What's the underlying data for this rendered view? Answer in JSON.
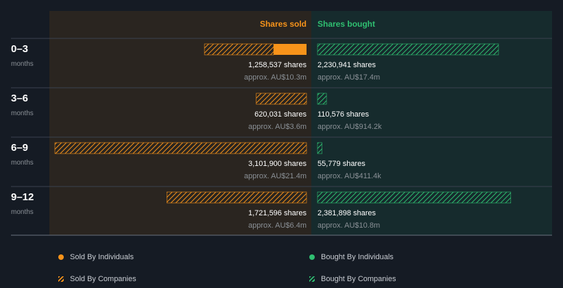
{
  "header": {
    "sold_label": "Shares sold",
    "bought_label": "Shares bought"
  },
  "colors": {
    "background": "#151b24",
    "sold_panel": "#2a2520",
    "bought_panel": "#162b2d",
    "sold_accent": "#f7931a",
    "bought_accent": "#2fbf71",
    "label_text": "#ffffff",
    "muted_text": "#8a9096"
  },
  "chart_data": {
    "type": "bar",
    "title": "",
    "unit": "shares",
    "categories": [
      {
        "label": "0–3",
        "sublabel": "months"
      },
      {
        "label": "3–6",
        "sublabel": "months"
      },
      {
        "label": "6–9",
        "sublabel": "months"
      },
      {
        "label": "9–12",
        "sublabel": "months"
      }
    ],
    "series": [
      {
        "name": "Sold By Individuals",
        "side": "sold",
        "values": [
          405000,
          0,
          0,
          0
        ]
      },
      {
        "name": "Sold By Companies",
        "side": "sold",
        "values": [
          853537,
          620031,
          3101900,
          1721596
        ]
      },
      {
        "name": "Bought By Individuals",
        "side": "bought",
        "values": [
          0,
          0,
          0,
          0
        ]
      },
      {
        "name": "Bought By Companies",
        "side": "bought",
        "values": [
          2230941,
          110576,
          55779,
          2381898
        ]
      }
    ],
    "sold_totals": [
      "1,258,537 shares",
      "620,031 shares",
      "3,101,900 shares",
      "1,721,596 shares"
    ],
    "sold_values": [
      "approx. AU$10.3m",
      "approx. AU$3.6m",
      "approx. AU$21.4m",
      "approx. AU$6.4m"
    ],
    "bought_totals": [
      "2,230,941 shares",
      "110,576 shares",
      "55,779 shares",
      "2,381,898 shares"
    ],
    "bought_values": [
      "approx. AU$17.4m",
      "approx. AU$914.2k",
      "approx. AU$411.4k",
      "approx. AU$10.8m"
    ],
    "max_value": 3101900
  },
  "legend": [
    {
      "label": "Sold By Individuals",
      "icon": "orange-dot"
    },
    {
      "label": "Bought By Individuals",
      "icon": "green-dot"
    },
    {
      "label": "Sold By Companies",
      "icon": "orange-hatch"
    },
    {
      "label": "Bought By Companies",
      "icon": "green-hatch"
    }
  ]
}
